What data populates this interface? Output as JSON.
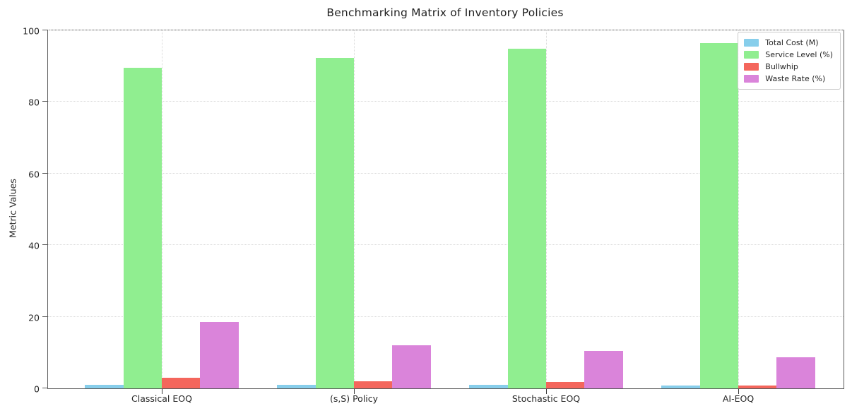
{
  "title": "Benchmarking Matrix of Inventory Policies",
  "ylabel": "Metric Values",
  "chart_data": {
    "type": "bar",
    "title": "Benchmarking Matrix of Inventory Policies",
    "xlabel": "",
    "ylabel": "Metric Values",
    "categories": [
      "Classical EOQ",
      "(s,S) Policy",
      "Stochastic EOQ",
      "AI-EOQ"
    ],
    "series": [
      {
        "name": "Total Cost (M)",
        "color": "#87CEEB",
        "values": [
          1.0,
          0.95,
          0.9,
          0.8
        ]
      },
      {
        "name": "Service Level (%)",
        "color": "#90EE90",
        "values": [
          89.5,
          92.4,
          94.9,
          96.5
        ]
      },
      {
        "name": "Bullwhip",
        "color": "#F4665C",
        "values": [
          3.0,
          1.9,
          1.8,
          0.8
        ]
      },
      {
        "name": "Waste Rate (%)",
        "color": "#DA84DA",
        "values": [
          18.5,
          12.0,
          10.5,
          8.7
        ]
      }
    ],
    "ylim": [
      0,
      100
    ],
    "yticks": [
      0,
      20,
      40,
      60,
      80,
      100
    ],
    "grid": "dotted horizontal and vertical",
    "legend_position": "upper right",
    "axis_colors": {
      "spine": "#5a5a5a",
      "grid": "#d9d9d9",
      "text": "#262626"
    }
  }
}
